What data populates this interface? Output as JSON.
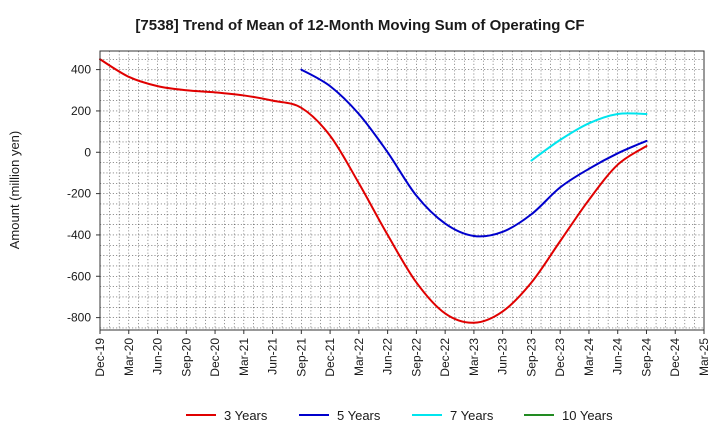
{
  "chart_data": {
    "type": "line",
    "title": "[7538]  Trend of Mean of 12-Month Moving Sum of Operating CF",
    "xlabel": "",
    "ylabel": "Amount (million yen)",
    "ylim": [
      -860,
      490
    ],
    "yticks": [
      400,
      200,
      0,
      -200,
      -400,
      -600,
      -800
    ],
    "ytick_labels": [
      "400",
      "200",
      "0",
      "-200",
      "-400",
      "-600",
      "-800"
    ],
    "x_tick_labels": [
      "Dec-19",
      "Mar-20",
      "Jun-20",
      "Sep-20",
      "Dec-20",
      "Mar-21",
      "Jun-21",
      "Sep-21",
      "Dec-21",
      "Mar-22",
      "Jun-22",
      "Sep-22",
      "Dec-22",
      "Mar-23",
      "Jun-23",
      "Sep-23",
      "Dec-23",
      "Mar-24",
      "Jun-24",
      "Sep-24",
      "Dec-24",
      "Mar-25"
    ],
    "grid": true,
    "legend_position": "bottom",
    "series": [
      {
        "name": "3 Years",
        "color": "#e00000",
        "points": [
          [
            0,
            450
          ],
          [
            1,
            365
          ],
          [
            2,
            320
          ],
          [
            3,
            300
          ],
          [
            4,
            290
          ],
          [
            5,
            275
          ],
          [
            6,
            250
          ],
          [
            7,
            215
          ],
          [
            8,
            80
          ],
          [
            9,
            -150
          ],
          [
            10,
            -400
          ],
          [
            11,
            -630
          ],
          [
            12,
            -780
          ],
          [
            13,
            -825
          ],
          [
            14,
            -770
          ],
          [
            15,
            -630
          ],
          [
            16,
            -430
          ],
          [
            17,
            -230
          ],
          [
            18,
            -60
          ],
          [
            19,
            30
          ]
        ]
      },
      {
        "name": "5 Years",
        "color": "#0000cc",
        "points": [
          [
            7,
            400
          ],
          [
            8,
            320
          ],
          [
            9,
            185
          ],
          [
            10,
            0
          ],
          [
            11,
            -210
          ],
          [
            12,
            -345
          ],
          [
            13,
            -405
          ],
          [
            14,
            -385
          ],
          [
            15,
            -300
          ],
          [
            16,
            -170
          ],
          [
            17,
            -80
          ],
          [
            18,
            -5
          ],
          [
            19,
            55
          ]
        ]
      },
      {
        "name": "7 Years",
        "color": "#00e5ee",
        "points": [
          [
            15,
            -40
          ],
          [
            16,
            60
          ],
          [
            17,
            140
          ],
          [
            18,
            185
          ],
          [
            19,
            185
          ]
        ]
      },
      {
        "name": "10 Years",
        "color": "#228b22",
        "points": []
      }
    ]
  }
}
